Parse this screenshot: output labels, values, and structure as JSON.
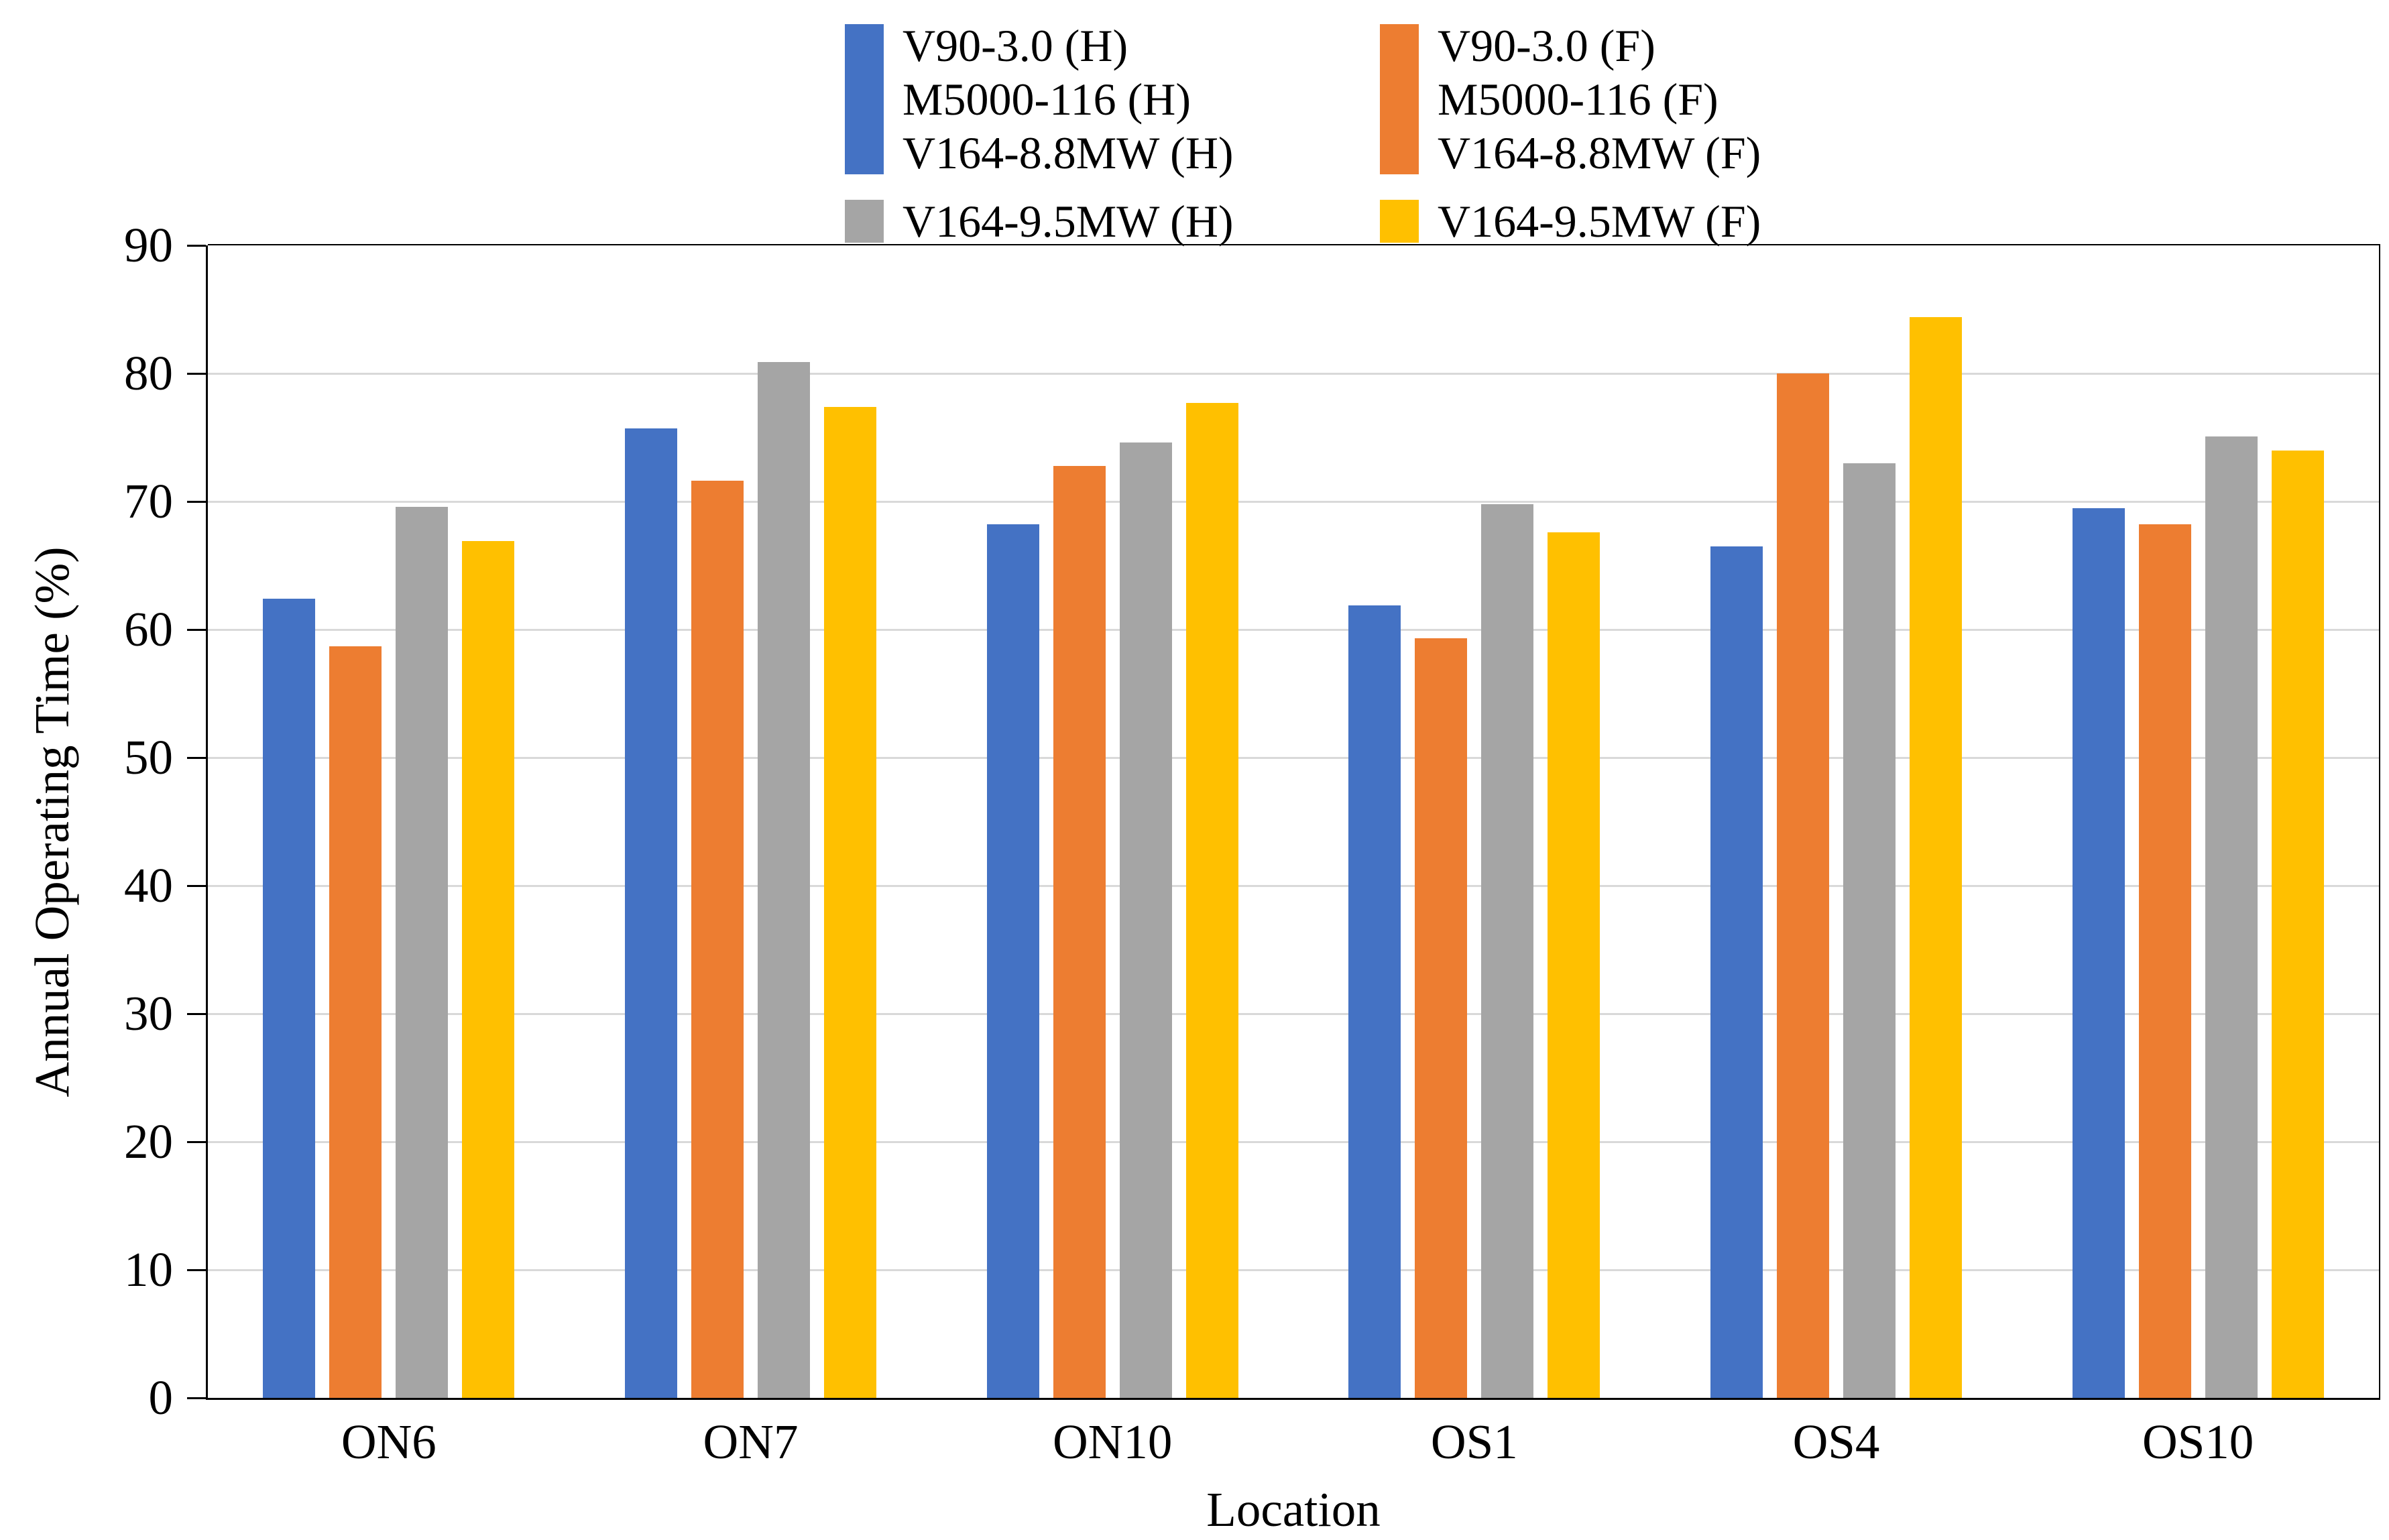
{
  "chart_data": {
    "type": "bar",
    "title": "",
    "xlabel": "Location",
    "ylabel": "Annual Operating Time (%)",
    "ylim": [
      0,
      90
    ],
    "yticks": [
      0,
      10,
      20,
      30,
      40,
      50,
      60,
      70,
      80,
      90
    ],
    "grid": "horizontal",
    "legend_position": "top-center",
    "categories": [
      "ON6",
      "ON7",
      "ON10",
      "OS1",
      "OS4",
      "OS10"
    ],
    "series": [
      {
        "name": "V90-3.0 (H) / M5000-116 (H) / V164-8.8MW (H)",
        "color": "#4472C4",
        "values": [
          62.4,
          75.7,
          68.2,
          61.9,
          66.5,
          69.5
        ]
      },
      {
        "name": "V90-3.0 (F) / M5000-116 (F) / V164-8.8MW (F)",
        "color": "#ED7D31",
        "values": [
          58.7,
          71.6,
          72.8,
          59.3,
          80.0,
          68.2
        ]
      },
      {
        "name": "V164-9.5MW (H)",
        "color": "#A5A5A5",
        "values": [
          69.6,
          80.9,
          74.6,
          69.8,
          73.0,
          75.1
        ]
      },
      {
        "name": "V164-9.5MW (F)",
        "color": "#FFC000",
        "values": [
          66.9,
          77.4,
          77.7,
          67.6,
          84.4,
          74.0
        ]
      }
    ]
  },
  "legend": {
    "columns": [
      {
        "entries": [
          {
            "swatch_color": "#4472C4",
            "swatch_shape": "tall",
            "labels": [
              "V90-3.0 (H)",
              "M5000-116 (H)",
              "V164-8.8MW (H)"
            ]
          },
          {
            "swatch_color": "#A5A5A5",
            "swatch_shape": "small",
            "labels": [
              "V164-9.5MW (H)"
            ]
          }
        ]
      },
      {
        "entries": [
          {
            "swatch_color": "#ED7D31",
            "swatch_shape": "tall",
            "labels": [
              "V90-3.0 (F)",
              "M5000-116 (F)",
              "V164-8.8MW (F)"
            ]
          },
          {
            "swatch_color": "#FFC000",
            "swatch_shape": "small",
            "labels": [
              "V164-9.5MW (F)"
            ]
          }
        ]
      }
    ]
  },
  "axes": {
    "y_title": "Annual Operating Time (%)",
    "x_title": "Location"
  },
  "colors": {
    "grid": "#D9D9D9",
    "axis": "#000000",
    "background": "#FFFFFF"
  }
}
